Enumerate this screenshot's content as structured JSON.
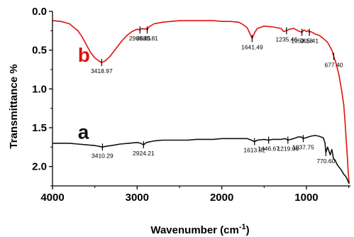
{
  "chart_data": {
    "type": "line",
    "xlabel": "Wavenumber (cm",
    "xlabel_sup": "-1",
    "xlabel_end": ")",
    "ylabel": "Transmittance %",
    "xlim": [
      4000,
      480
    ],
    "ylim": [
      0,
      2.25
    ],
    "y_inverted": true,
    "x_ticks": [
      4000,
      3000,
      2000,
      1000
    ],
    "x_tick_labels": [
      "4000",
      "3000",
      "2000",
      "1000"
    ],
    "y_ticks": [
      0.0,
      0.5,
      1.0,
      1.5,
      2.0
    ],
    "y_tick_labels": [
      "0.0",
      "0.5",
      "1.0",
      "1.5",
      "2.0"
    ],
    "grid": false,
    "series": [
      {
        "name": "b",
        "color": "#e01010",
        "x": [
          4000,
          3900,
          3800,
          3700,
          3650,
          3600,
          3550,
          3500,
          3450,
          3418.97,
          3380,
          3320,
          3250,
          3180,
          3120,
          3060,
          3000,
          2966.65,
          2940,
          2920,
          2900,
          2880.81,
          2860,
          2800,
          2700,
          2600,
          2500,
          2400,
          2300,
          2200,
          2100,
          2000,
          1900,
          1800,
          1750,
          1700,
          1670,
          1641.49,
          1610,
          1580,
          1500,
          1400,
          1300,
          1270,
          1235.46,
          1200,
          1150,
          1100,
          1080,
          1053.18,
          1030,
          1000,
          980,
          965.41,
          950,
          900,
          850,
          800,
          750,
          700,
          677.4,
          650,
          620,
          600,
          580,
          560,
          545,
          530,
          515,
          505,
          495
        ],
        "y": [
          0.12,
          0.13,
          0.16,
          0.25,
          0.33,
          0.43,
          0.53,
          0.6,
          0.64,
          0.66,
          0.64,
          0.58,
          0.48,
          0.38,
          0.31,
          0.26,
          0.23,
          0.24,
          0.22,
          0.23,
          0.22,
          0.24,
          0.2,
          0.16,
          0.14,
          0.13,
          0.12,
          0.12,
          0.12,
          0.12,
          0.12,
          0.13,
          0.13,
          0.14,
          0.17,
          0.21,
          0.28,
          0.35,
          0.27,
          0.22,
          0.19,
          0.2,
          0.22,
          0.26,
          0.25,
          0.23,
          0.22,
          0.25,
          0.26,
          0.27,
          0.24,
          0.26,
          0.25,
          0.27,
          0.26,
          0.29,
          0.31,
          0.35,
          0.4,
          0.5,
          0.58,
          0.67,
          0.8,
          0.92,
          1.05,
          1.2,
          1.4,
          1.65,
          1.9,
          2.1,
          2.22
        ]
      },
      {
        "name": "a",
        "color": "#111111",
        "x": [
          4000,
          3900,
          3800,
          3700,
          3600,
          3500,
          3450,
          3410.29,
          3370,
          3300,
          3200,
          3100,
          3000,
          2960,
          2924.21,
          2890,
          2800,
          2700,
          2600,
          2500,
          2400,
          2300,
          2200,
          2100,
          2000,
          1900,
          1800,
          1700,
          1650,
          1613.52,
          1580,
          1500,
          1446.67,
          1400,
          1300,
          1250,
          1219.06,
          1150,
          1100,
          1060,
          1037.75,
          1010,
          950,
          900,
          850,
          800,
          780,
          770.6,
          750,
          720,
          700,
          680,
          660,
          640,
          620,
          600,
          580,
          560,
          540,
          520,
          505,
          495
        ],
        "y": [
          1.7,
          1.7,
          1.7,
          1.71,
          1.72,
          1.73,
          1.74,
          1.75,
          1.74,
          1.73,
          1.71,
          1.7,
          1.69,
          1.7,
          1.72,
          1.69,
          1.67,
          1.66,
          1.66,
          1.66,
          1.66,
          1.65,
          1.65,
          1.65,
          1.64,
          1.64,
          1.64,
          1.64,
          1.66,
          1.68,
          1.66,
          1.65,
          1.66,
          1.65,
          1.65,
          1.64,
          1.66,
          1.64,
          1.62,
          1.62,
          1.64,
          1.63,
          1.61,
          1.6,
          1.61,
          1.63,
          1.7,
          1.82,
          1.75,
          1.85,
          1.78,
          1.9,
          1.92,
          1.97,
          2.0,
          2.03,
          2.06,
          2.1,
          2.12,
          2.16,
          2.2,
          2.22
        ]
      }
    ],
    "panel_labels": [
      {
        "text": "b",
        "color": "#e01010",
        "x": 3700,
        "y": 0.56
      },
      {
        "text": "a",
        "color": "#111111",
        "x": 3700,
        "y": 1.55
      }
    ],
    "annotations": [
      {
        "text": "3418.97",
        "x": 3418.97,
        "y": 0.66
      },
      {
        "text": "2966.65",
        "x": 2966.65,
        "y": 0.24
      },
      {
        "text": "2880.81",
        "x": 2880.81,
        "y": 0.24
      },
      {
        "text": "1641.49",
        "x": 1641.49,
        "y": 0.35
      },
      {
        "text": "1235.46",
        "x": 1235.46,
        "y": 0.25
      },
      {
        "text": "1053.18",
        "x": 1053.18,
        "y": 0.27
      },
      {
        "text": "965.41",
        "x": 965.41,
        "y": 0.27
      },
      {
        "text": "677.40",
        "x": 677.4,
        "y": 0.58
      },
      {
        "text": "3410.29",
        "x": 3410.29,
        "y": 1.75
      },
      {
        "text": "2924.21",
        "x": 2924.21,
        "y": 1.72
      },
      {
        "text": "1613.52",
        "x": 1613.52,
        "y": 1.68
      },
      {
        "text": "1446.67",
        "x": 1446.67,
        "y": 1.66
      },
      {
        "text": "1219.06",
        "x": 1219.06,
        "y": 1.66
      },
      {
        "text": "1037.75",
        "x": 1037.75,
        "y": 1.64
      },
      {
        "text": "770.60",
        "x": 770.6,
        "y": 1.82
      }
    ]
  }
}
